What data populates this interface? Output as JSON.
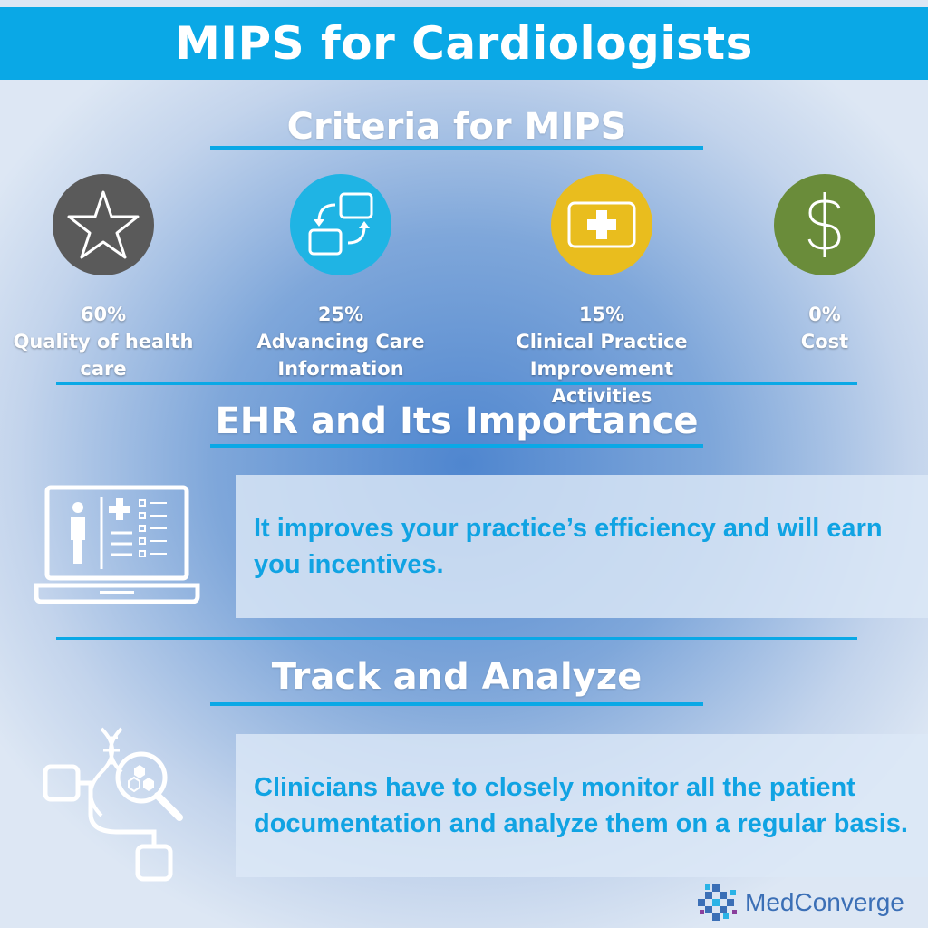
{
  "title": "MIPS for Cardiologists",
  "criteria": {
    "heading": "Criteria for MIPS",
    "items": [
      {
        "percent": "60%",
        "label": "Quality of health care",
        "icon": "star-icon",
        "color": "#5a5a5a"
      },
      {
        "percent": "25%",
        "label": "Advancing Care Information",
        "icon": "exchange-icon",
        "color": "#1fb4e4"
      },
      {
        "percent": "15%",
        "label": "Clinical Practice Improvement Activities",
        "icon": "first-aid-icon",
        "color": "#e9bd1e"
      },
      {
        "percent": "0%",
        "label": "Cost",
        "icon": "dollar-icon",
        "color": "#6a8c3a"
      }
    ]
  },
  "ehr": {
    "heading": "EHR and Its Importance",
    "text": "It improves your practice’s efficiency and will earn you incentives.",
    "icon": "laptop-medical-record-icon"
  },
  "track": {
    "heading": "Track and Analyze",
    "text": "Clinicians have to closely monitor all the patient documentation and analyze them on a regular basis.",
    "icon": "dna-analysis-icon"
  },
  "brand": {
    "name": "MedConverge",
    "icon": "medconverge-logo-icon",
    "color": "#3b6fb6"
  },
  "colors": {
    "accent": "#0aa8e6",
    "text_box_text": "#10a3e3"
  }
}
